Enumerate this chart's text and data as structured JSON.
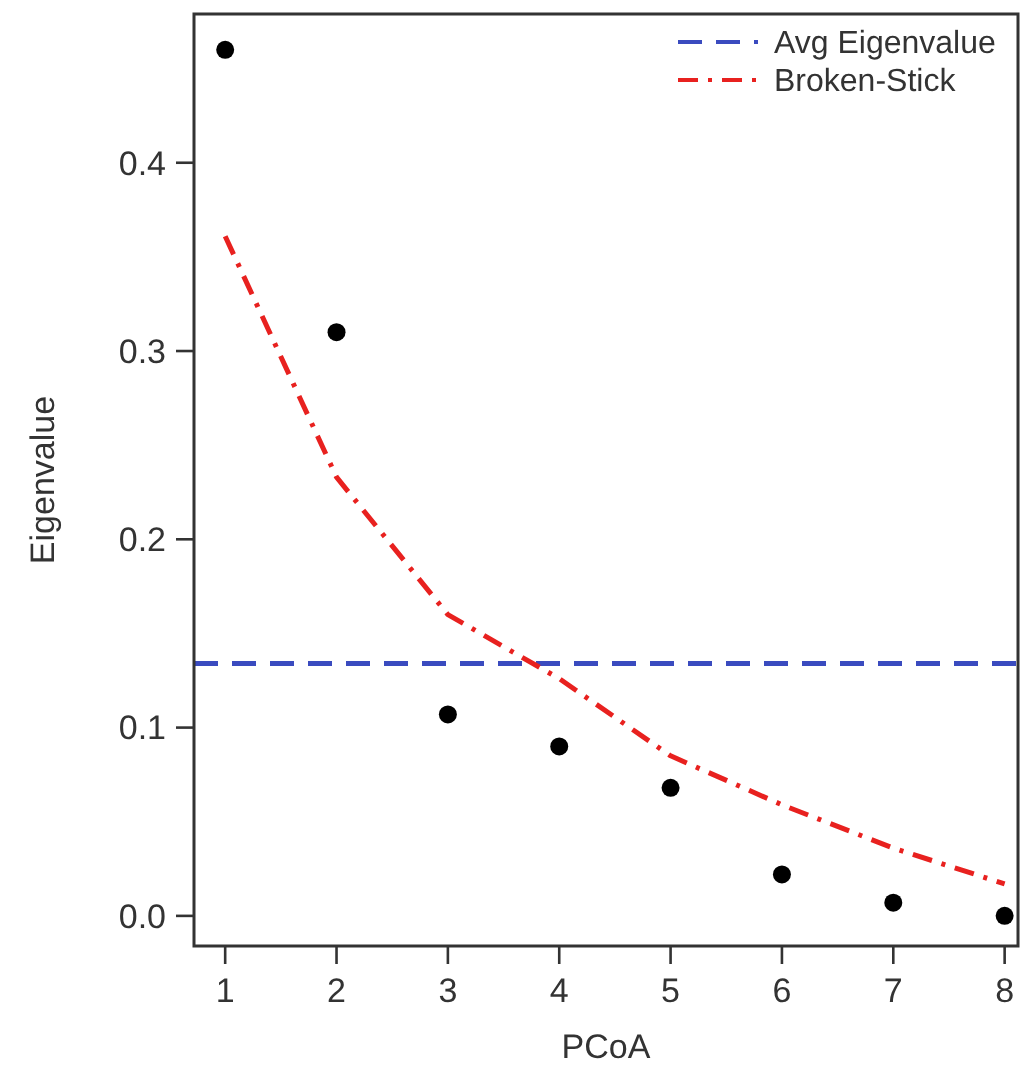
{
  "chart_data": {
    "type": "scatter",
    "xlabel": "PCoA",
    "ylabel": "Eigenvalue",
    "xlim": [
      0.72,
      8.12
    ],
    "ylim": [
      -0.016,
      0.479
    ],
    "xticks": [
      1,
      2,
      3,
      4,
      5,
      6,
      7,
      8
    ],
    "yticks": [
      {
        "value": 0,
        "label": "0.0"
      },
      0.1,
      0.2,
      0.3,
      0.4
    ],
    "grid": false,
    "legend": "top right",
    "marker": "circle",
    "series": [
      {
        "color": "#000000",
        "x": [
          1,
          2,
          3,
          4,
          5,
          6,
          7,
          8
        ],
        "values": [
          0.46,
          0.31,
          0.107,
          0.09,
          0.068,
          0.022,
          0.007,
          0.0
        ]
      },
      {
        "type": "line",
        "name": "Broken-Stick",
        "color": "#e8211f",
        "line_style": "dashed",
        "marker": "none",
        "x": [
          1,
          2,
          3,
          4,
          5,
          6,
          7,
          8
        ],
        "values": [
          0.361,
          0.233,
          0.16,
          0.126,
          0.085,
          0.059,
          0.036,
          0.017
        ]
      }
    ],
    "ref_lines": [
      {
        "axis": "y",
        "value": 0.134,
        "label": "Avg Eigenvalue",
        "color": "#3a4bbf",
        "line_style": "dashed"
      }
    ]
  }
}
